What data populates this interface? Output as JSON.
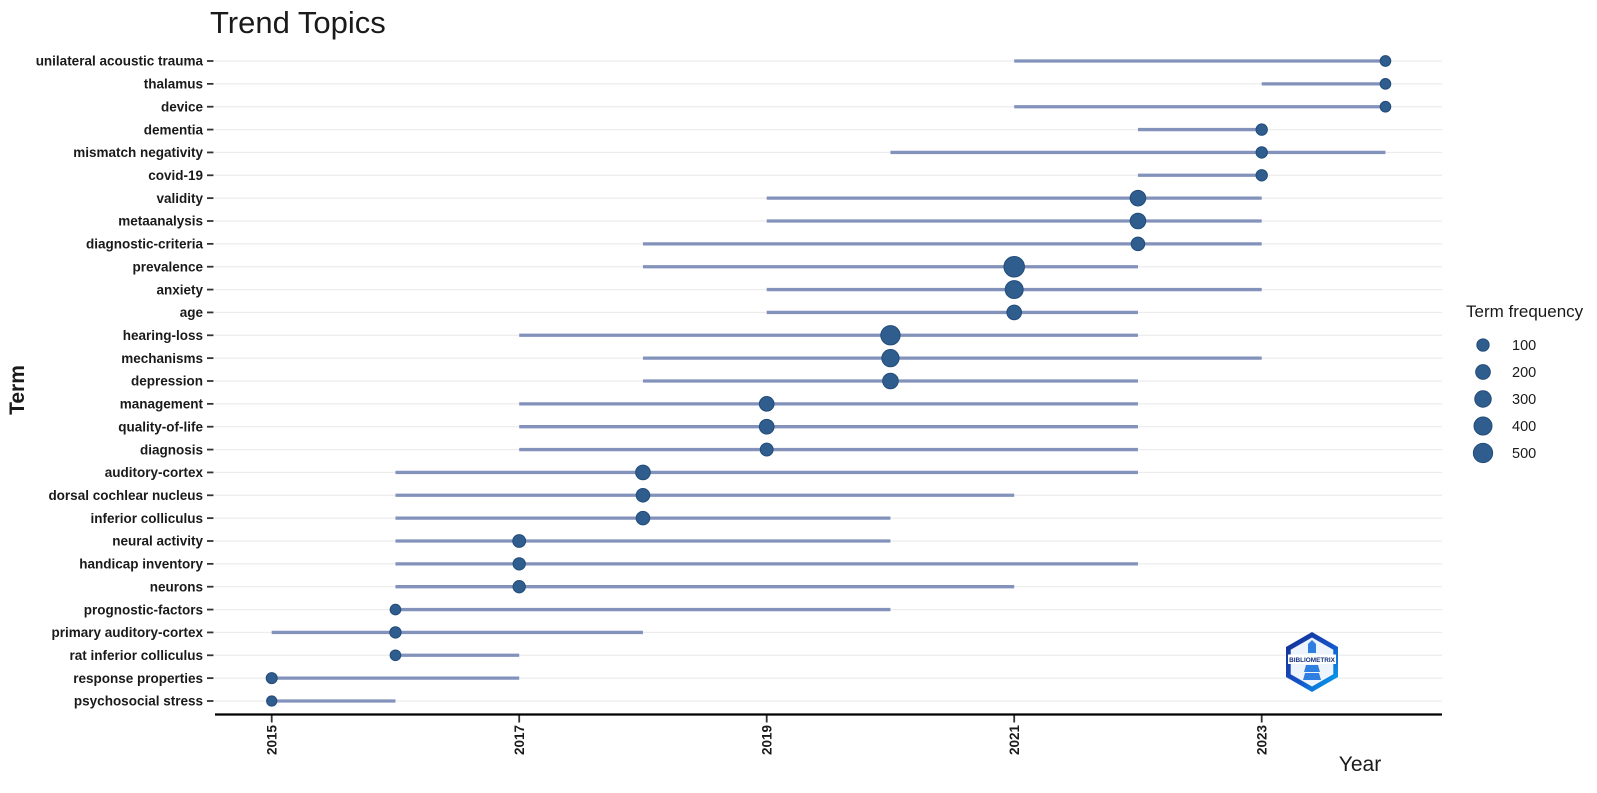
{
  "title": "Trend Topics",
  "axes": {
    "x_title": "Year",
    "y_title": "Term",
    "x_ticks": [
      2015,
      2017,
      2019,
      2021,
      2023
    ]
  },
  "legend": {
    "title": "Term frequency",
    "sizes": [
      100,
      200,
      300,
      400,
      500
    ]
  },
  "logo": {
    "text": "BIBLIOMETRIX"
  },
  "colors": {
    "dot": "#2f5d8e",
    "dot_stroke": "#224c7a",
    "line": "#8292bb",
    "grid": "#ececec",
    "axis": "#000000",
    "tick": "#333333",
    "text": "#1a1a1a"
  },
  "chart_data": {
    "type": "scatter",
    "title": "Trend Topics",
    "xlabel": "Year",
    "ylabel": "Term",
    "x_range": [
      2014.55,
      2024.45
    ],
    "grid": "horizontal-major-only",
    "legend_position": "right",
    "note": "Each term has a horizontal span from year_q1 to year_q3 and a dot at year_med sized by freq (term frequency).",
    "series": [
      {
        "term": "unilateral acoustic trauma",
        "year_q1": 2021,
        "year_med": 2024,
        "year_q3": 2024,
        "freq": 50
      },
      {
        "term": "thalamus",
        "year_q1": 2023,
        "year_med": 2024,
        "year_q3": 2024,
        "freq": 50
      },
      {
        "term": "device",
        "year_q1": 2021,
        "year_med": 2024,
        "year_q3": 2024,
        "freq": 50
      },
      {
        "term": "dementia",
        "year_q1": 2022,
        "year_med": 2023,
        "year_q3": 2023,
        "freq": 70
      },
      {
        "term": "mismatch negativity",
        "year_q1": 2020,
        "year_med": 2023,
        "year_q3": 2024,
        "freq": 70
      },
      {
        "term": "covid-19",
        "year_q1": 2022,
        "year_med": 2023,
        "year_q3": 2023,
        "freq": 70
      },
      {
        "term": "validity",
        "year_q1": 2019,
        "year_med": 2022,
        "year_q3": 2023,
        "freq": 250
      },
      {
        "term": "metaanalysis",
        "year_q1": 2019,
        "year_med": 2022,
        "year_q3": 2023,
        "freq": 250
      },
      {
        "term": "diagnostic-criteria",
        "year_q1": 2018,
        "year_med": 2022,
        "year_q3": 2023,
        "freq": 150
      },
      {
        "term": "prevalence",
        "year_q1": 2018,
        "year_med": 2021,
        "year_q3": 2022,
        "freq": 600
      },
      {
        "term": "anxiety",
        "year_q1": 2019,
        "year_med": 2021,
        "year_q3": 2023,
        "freq": 400
      },
      {
        "term": "age",
        "year_q1": 2019,
        "year_med": 2021,
        "year_q3": 2022,
        "freq": 200
      },
      {
        "term": "hearing-loss",
        "year_q1": 2017,
        "year_med": 2020,
        "year_q3": 2022,
        "freq": 500
      },
      {
        "term": "mechanisms",
        "year_q1": 2018,
        "year_med": 2020,
        "year_q3": 2023,
        "freq": 350
      },
      {
        "term": "depression",
        "year_q1": 2018,
        "year_med": 2020,
        "year_q3": 2022,
        "freq": 250
      },
      {
        "term": "management",
        "year_q1": 2017,
        "year_med": 2019,
        "year_q3": 2022,
        "freq": 200
      },
      {
        "term": "quality-of-life",
        "year_q1": 2017,
        "year_med": 2019,
        "year_q3": 2022,
        "freq": 200
      },
      {
        "term": "diagnosis",
        "year_q1": 2017,
        "year_med": 2019,
        "year_q3": 2022,
        "freq": 120
      },
      {
        "term": "auditory-cortex",
        "year_q1": 2016,
        "year_med": 2018,
        "year_q3": 2022,
        "freq": 200
      },
      {
        "term": "dorsal cochlear nucleus",
        "year_q1": 2016,
        "year_med": 2018,
        "year_q3": 2021,
        "freq": 150
      },
      {
        "term": "inferior colliculus",
        "year_q1": 2016,
        "year_med": 2018,
        "year_q3": 2020,
        "freq": 150
      },
      {
        "term": "neural activity",
        "year_q1": 2016,
        "year_med": 2017,
        "year_q3": 2020,
        "freq": 120
      },
      {
        "term": "handicap inventory",
        "year_q1": 2016,
        "year_med": 2017,
        "year_q3": 2022,
        "freq": 100
      },
      {
        "term": "neurons",
        "year_q1": 2016,
        "year_med": 2017,
        "year_q3": 2021,
        "freq": 100
      },
      {
        "term": "prognostic-factors",
        "year_q1": 2016,
        "year_med": 2016,
        "year_q3": 2020,
        "freq": 50
      },
      {
        "term": "primary auditory-cortex",
        "year_q1": 2015,
        "year_med": 2016,
        "year_q3": 2018,
        "freq": 70
      },
      {
        "term": "rat inferior colliculus",
        "year_q1": 2016,
        "year_med": 2016,
        "year_q3": 2017,
        "freq": 50
      },
      {
        "term": "response properties",
        "year_q1": 2015,
        "year_med": 2015,
        "year_q3": 2017,
        "freq": 60
      },
      {
        "term": "psychosocial stress",
        "year_q1": 2015,
        "year_med": 2015,
        "year_q3": 2016,
        "freq": 40
      }
    ]
  }
}
